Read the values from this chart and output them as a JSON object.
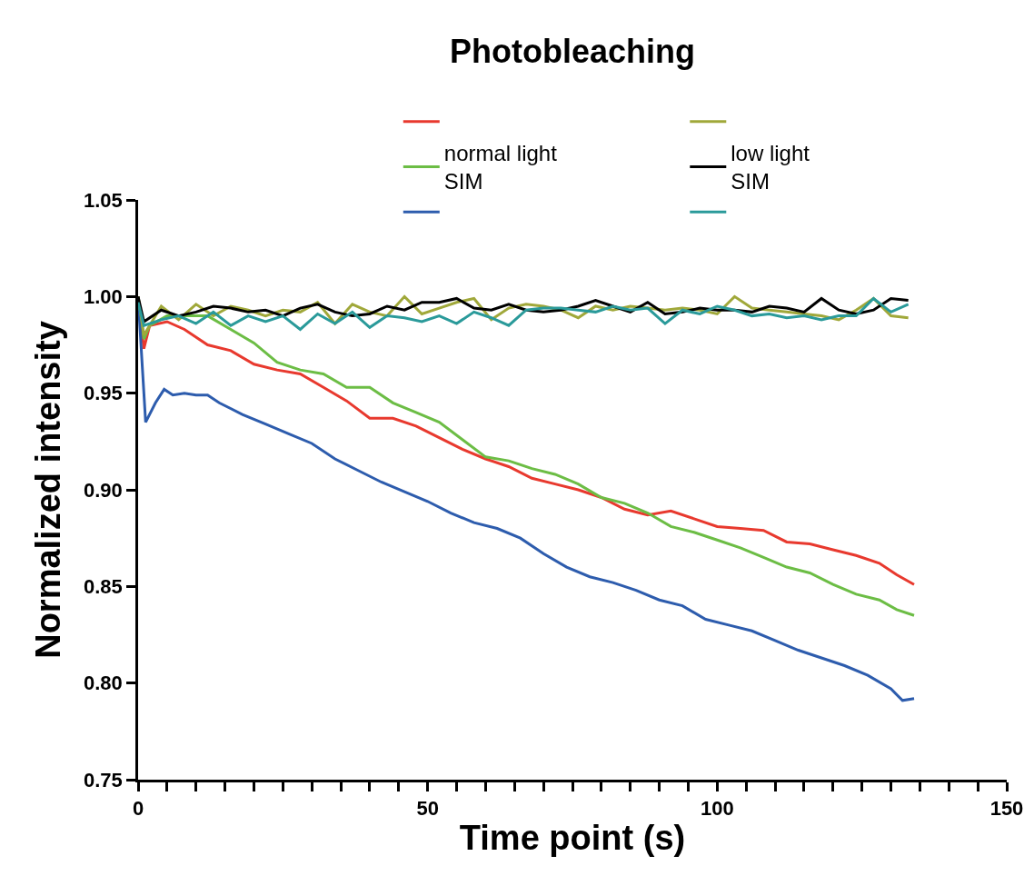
{
  "chart_data": {
    "type": "line",
    "title": "Photobleaching",
    "xlabel": "Time point (s)",
    "ylabel": "Normalized intensity",
    "xlim": [
      0,
      150
    ],
    "ylim": [
      0.75,
      1.05
    ],
    "xticks": [
      0,
      {
        "value": 5,
        "label": null
      },
      {
        "value": 10,
        "label": null
      },
      {
        "value": 15,
        "label": null
      },
      {
        "value": 20,
        "label": null
      },
      {
        "value": 25,
        "label": null
      },
      {
        "value": 30,
        "label": null
      },
      {
        "value": 35,
        "label": null
      },
      {
        "value": 40,
        "label": null
      },
      {
        "value": 45,
        "label": null
      },
      50,
      {
        "value": 55,
        "label": null
      },
      {
        "value": 60,
        "label": null
      },
      {
        "value": 65,
        "label": null
      },
      {
        "value": 70,
        "label": null
      },
      {
        "value": 75,
        "label": null
      },
      {
        "value": 80,
        "label": null
      },
      {
        "value": 85,
        "label": null
      },
      {
        "value": 90,
        "label": null
      },
      {
        "value": 95,
        "label": null
      },
      100,
      {
        "value": 105,
        "label": null
      },
      {
        "value": 110,
        "label": null
      },
      {
        "value": 115,
        "label": null
      },
      {
        "value": 120,
        "label": null
      },
      {
        "value": 125,
        "label": null
      },
      {
        "value": 130,
        "label": null
      },
      {
        "value": 135,
        "label": null
      },
      {
        "value": 140,
        "label": null
      },
      {
        "value": 145,
        "label": null
      },
      150
    ],
    "yticks": [
      {
        "value": 0.75,
        "label": "0.75"
      },
      {
        "value": 0.8,
        "label": "0.80"
      },
      {
        "value": 0.85,
        "label": "0.85"
      },
      {
        "value": 0.9,
        "label": "0.90"
      },
      {
        "value": 0.95,
        "label": "0.95"
      },
      {
        "value": 1.0,
        "label": "1.00"
      },
      {
        "value": 1.05,
        "label": "1.05"
      }
    ],
    "legend": "top",
    "marker": "none",
    "line_style": "solid",
    "series": [
      {
        "color": "#e8392e",
        "x": [
          0,
          1,
          2,
          5,
          8,
          12,
          16,
          20,
          24,
          28,
          32,
          36,
          40,
          44,
          48,
          52,
          56,
          60,
          64,
          68,
          72,
          76,
          80,
          84,
          88,
          92,
          96,
          100,
          104,
          108,
          112,
          116,
          120,
          124,
          128,
          131,
          134
        ],
        "values": [
          1.0,
          0.973,
          0.985,
          0.987,
          0.983,
          0.975,
          0.972,
          0.965,
          0.962,
          0.96,
          0.953,
          0.946,
          0.937,
          0.937,
          0.933,
          0.927,
          0.921,
          0.916,
          0.912,
          0.906,
          0.903,
          0.9,
          0.896,
          0.89,
          0.887,
          0.889,
          0.885,
          0.881,
          0.88,
          0.879,
          0.873,
          0.872,
          0.869,
          0.866,
          0.862,
          0.856,
          0.851
        ]
      },
      {
        "name": "normal light\nSIM",
        "color": "#6cbd45",
        "x": [
          0,
          1,
          2,
          5,
          8,
          12,
          16,
          20,
          24,
          28,
          32,
          36,
          40,
          44,
          48,
          52,
          56,
          60,
          64,
          68,
          72,
          76,
          80,
          84,
          88,
          92,
          96,
          100,
          104,
          108,
          112,
          116,
          120,
          124,
          128,
          131,
          134
        ],
        "values": [
          1.0,
          0.978,
          0.985,
          0.99,
          0.99,
          0.99,
          0.983,
          0.976,
          0.966,
          0.962,
          0.96,
          0.953,
          0.953,
          0.945,
          0.94,
          0.935,
          0.926,
          0.917,
          0.915,
          0.911,
          0.908,
          0.903,
          0.896,
          0.893,
          0.888,
          0.881,
          0.878,
          0.874,
          0.87,
          0.865,
          0.86,
          0.857,
          0.851,
          0.846,
          0.843,
          0.838,
          0.835
        ]
      },
      {
        "color": "#2d5cad",
        "x": [
          0,
          1.3,
          3,
          4.5,
          6,
          8,
          10,
          12,
          14,
          18,
          22,
          26,
          30,
          34,
          38,
          42,
          46,
          50,
          54,
          58,
          62,
          66,
          70,
          74,
          78,
          82,
          86,
          90,
          94,
          98,
          102,
          106,
          110,
          114,
          118,
          122,
          126,
          130,
          132,
          134
        ],
        "values": [
          1.0,
          0.935,
          0.945,
          0.952,
          0.949,
          0.95,
          0.949,
          0.949,
          0.945,
          0.939,
          0.934,
          0.929,
          0.924,
          0.916,
          0.91,
          0.904,
          0.899,
          0.894,
          0.888,
          0.883,
          0.88,
          0.875,
          0.867,
          0.86,
          0.855,
          0.852,
          0.848,
          0.843,
          0.84,
          0.833,
          0.83,
          0.827,
          0.822,
          0.817,
          0.813,
          0.809,
          0.804,
          0.797,
          0.791,
          0.792
        ]
      },
      {
        "color": "#a0a83a",
        "x": [
          0,
          1,
          4,
          7,
          10,
          13,
          16,
          19,
          22,
          25,
          28,
          31,
          34,
          37,
          40,
          43,
          46,
          49,
          52,
          55,
          58,
          61,
          64,
          67,
          70,
          73,
          76,
          79,
          82,
          85,
          88,
          91,
          94,
          97,
          100,
          103,
          106,
          109,
          112,
          115,
          118,
          121,
          124,
          127,
          130,
          133
        ],
        "values": [
          1.0,
          0.98,
          0.995,
          0.988,
          0.996,
          0.99,
          0.995,
          0.993,
          0.99,
          0.993,
          0.992,
          0.997,
          0.986,
          0.996,
          0.992,
          0.99,
          1.0,
          0.991,
          0.994,
          0.997,
          0.999,
          0.988,
          0.994,
          0.996,
          0.995,
          0.993,
          0.989,
          0.995,
          0.993,
          0.995,
          0.994,
          0.993,
          0.994,
          0.993,
          0.991,
          1.0,
          0.994,
          0.993,
          0.992,
          0.991,
          0.99,
          0.988,
          0.993,
          0.999,
          0.99,
          0.989
        ]
      },
      {
        "name": "low light\nSIM",
        "color": "#000000",
        "x": [
          0,
          1,
          4,
          7,
          10,
          13,
          16,
          19,
          22,
          25,
          28,
          31,
          34,
          37,
          40,
          43,
          46,
          49,
          52,
          55,
          58,
          61,
          64,
          67,
          70,
          73,
          76,
          79,
          82,
          85,
          88,
          91,
          94,
          97,
          100,
          103,
          106,
          109,
          112,
          115,
          118,
          121,
          124,
          127,
          130,
          133
        ],
        "values": [
          1.0,
          0.987,
          0.993,
          0.99,
          0.992,
          0.995,
          0.994,
          0.992,
          0.993,
          0.99,
          0.994,
          0.996,
          0.992,
          0.99,
          0.991,
          0.995,
          0.993,
          0.997,
          0.997,
          0.999,
          0.994,
          0.993,
          0.996,
          0.993,
          0.992,
          0.993,
          0.995,
          0.998,
          0.995,
          0.992,
          0.997,
          0.991,
          0.992,
          0.994,
          0.993,
          0.993,
          0.992,
          0.995,
          0.994,
          0.992,
          0.999,
          0.993,
          0.991,
          0.993,
          0.999,
          0.998
        ]
      },
      {
        "color": "#2a9a9a",
        "x": [
          0,
          1,
          4,
          7,
          10,
          13,
          16,
          19,
          22,
          25,
          28,
          31,
          34,
          37,
          40,
          43,
          46,
          49,
          52,
          55,
          58,
          61,
          64,
          67,
          70,
          73,
          76,
          79,
          82,
          85,
          88,
          91,
          94,
          97,
          100,
          103,
          106,
          109,
          112,
          115,
          118,
          121,
          124,
          127,
          130,
          133
        ],
        "values": [
          0.997,
          0.985,
          0.988,
          0.99,
          0.986,
          0.992,
          0.985,
          0.99,
          0.987,
          0.99,
          0.983,
          0.991,
          0.986,
          0.992,
          0.984,
          0.99,
          0.989,
          0.987,
          0.99,
          0.986,
          0.992,
          0.989,
          0.985,
          0.993,
          0.994,
          0.994,
          0.993,
          0.992,
          0.995,
          0.993,
          0.994,
          0.986,
          0.993,
          0.991,
          0.995,
          0.993,
          0.99,
          0.991,
          0.989,
          0.99,
          0.988,
          0.99,
          0.99,
          0.999,
          0.992,
          0.996
        ]
      }
    ]
  }
}
